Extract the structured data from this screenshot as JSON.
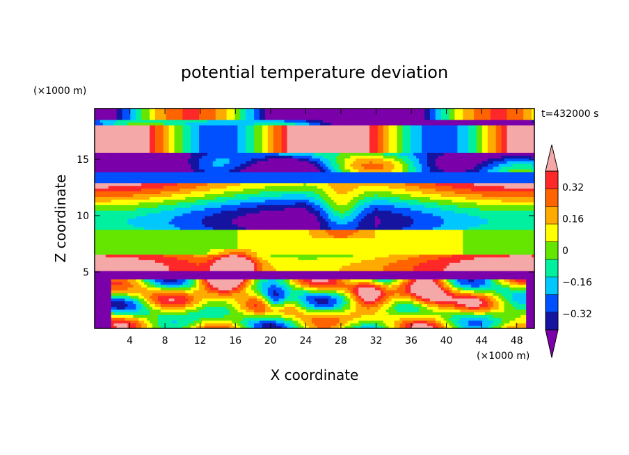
{
  "chart_data": {
    "type": "heatmap",
    "title": "potential temperature deviation",
    "xlabel": "X coordinate",
    "ylabel": "Z coordinate",
    "x_unit": "(×1000 m)",
    "y_unit": "(×1000 m)",
    "time_label": "t=432000 s",
    "xlim": [
      0,
      50
    ],
    "ylim": [
      0,
      19.5
    ],
    "x_ticks": [
      4,
      8,
      12,
      16,
      20,
      24,
      28,
      32,
      36,
      40,
      44,
      48
    ],
    "y_ticks": [
      5,
      10,
      15
    ],
    "colorbar": {
      "levels": [
        -0.4,
        -0.32,
        -0.24,
        -0.16,
        -0.08,
        0,
        0.08,
        0.16,
        0.24,
        0.32,
        0.4
      ],
      "tick_labels": [
        "0.32",
        "0.16",
        "0",
        "−0.16",
        "−0.32"
      ],
      "tick_values": [
        0.32,
        0.16,
        0,
        -0.16,
        -0.32
      ],
      "colors": [
        "#7b00aa",
        "#1414a0",
        "#0050ff",
        "#00c8ff",
        "#00f0a0",
        "#64e600",
        "#ffff00",
        "#ffaa00",
        "#ff6400",
        "#ff2828",
        "#f4a8a8"
      ],
      "extend": "both"
    }
  }
}
